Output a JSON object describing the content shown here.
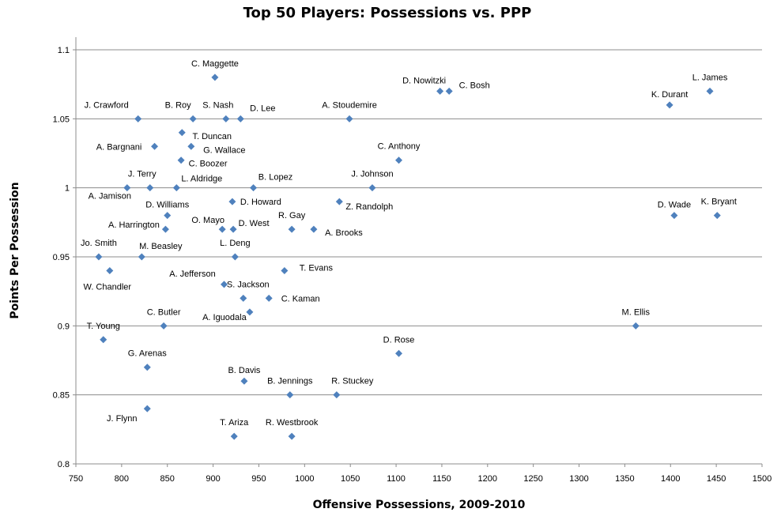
{
  "chart_data": {
    "type": "scatter",
    "title": "Top 50 Players: Possessions vs. PPP",
    "xlabel": "Offensive Possessions, 2009-2010",
    "ylabel": "Points Per Possession",
    "xlim": [
      750,
      1500
    ],
    "ylim": [
      0.8,
      1.1
    ],
    "xticks": [
      "750",
      "800",
      "850",
      "900",
      "950",
      "1000",
      "1050",
      "1100",
      "1150",
      "1200",
      "1250",
      "1300",
      "1350",
      "1400",
      "1450",
      "1500"
    ],
    "yticks": [
      "0.8",
      "0.85",
      "0.9",
      "0.95",
      "1",
      "1.05",
      "1.1"
    ],
    "marker_color": "#4f81bd",
    "points": [
      {
        "name": "C. Maggette",
        "x": 902,
        "y": 1.08
      },
      {
        "name": "D. Nowitzki",
        "x": 1148,
        "y": 1.07
      },
      {
        "name": "C. Bosh",
        "x": 1158,
        "y": 1.07
      },
      {
        "name": "L. James",
        "x": 1443,
        "y": 1.07
      },
      {
        "name": "K. Durant",
        "x": 1399,
        "y": 1.06
      },
      {
        "name": "J. Crawford",
        "x": 818,
        "y": 1.05
      },
      {
        "name": "B. Roy",
        "x": 878,
        "y": 1.05
      },
      {
        "name": "S. Nash",
        "x": 914,
        "y": 1.05
      },
      {
        "name": "D. Lee",
        "x": 930,
        "y": 1.05
      },
      {
        "name": "A. Stoudemire",
        "x": 1049,
        "y": 1.05
      },
      {
        "name": "T. Duncan",
        "x": 866,
        "y": 1.04
      },
      {
        "name": "A. Bargnani",
        "x": 836,
        "y": 1.03
      },
      {
        "name": "G. Wallace",
        "x": 876,
        "y": 1.03
      },
      {
        "name": "C. Anthony",
        "x": 1103,
        "y": 1.02
      },
      {
        "name": "C. Boozer",
        "x": 865,
        "y": 1.02
      },
      {
        "name": "J. Terry",
        "x": 831,
        "y": 1.0
      },
      {
        "name": "L. Aldridge",
        "x": 860,
        "y": 1.0
      },
      {
        "name": "B. Lopez",
        "x": 944,
        "y": 1.0
      },
      {
        "name": "J. Johnson",
        "x": 1074,
        "y": 1.0
      },
      {
        "name": "A. Jamison",
        "x": 806,
        "y": 1.0
      },
      {
        "name": "D. Howard",
        "x": 921,
        "y": 0.99
      },
      {
        "name": "Z. Randolph",
        "x": 1038,
        "y": 0.99
      },
      {
        "name": "D. Wade",
        "x": 1404,
        "y": 0.98
      },
      {
        "name": "K. Bryant",
        "x": 1451,
        "y": 0.98
      },
      {
        "name": "D. Williams",
        "x": 850,
        "y": 0.98
      },
      {
        "name": "O. Mayo",
        "x": 910,
        "y": 0.97
      },
      {
        "name": "D. West",
        "x": 922,
        "y": 0.97
      },
      {
        "name": "R. Gay",
        "x": 986,
        "y": 0.97
      },
      {
        "name": "A. Brooks",
        "x": 1010,
        "y": 0.97
      },
      {
        "name": "A. Harrington",
        "x": 848,
        "y": 0.97
      },
      {
        "name": "Jo. Smith",
        "x": 775,
        "y": 0.95
      },
      {
        "name": "M. Beasley",
        "x": 822,
        "y": 0.95
      },
      {
        "name": "L. Deng",
        "x": 924,
        "y": 0.95
      },
      {
        "name": "T. Evans",
        "x": 978,
        "y": 0.94
      },
      {
        "name": "W. Chandler",
        "x": 787,
        "y": 0.94
      },
      {
        "name": "A. Jefferson",
        "x": 912,
        "y": 0.93
      },
      {
        "name": "S. Jackson",
        "x": 933,
        "y": 0.92
      },
      {
        "name": "C. Kaman",
        "x": 961,
        "y": 0.92
      },
      {
        "name": "A. Iguodala",
        "x": 940,
        "y": 0.91
      },
      {
        "name": "M. Ellis",
        "x": 1362,
        "y": 0.9
      },
      {
        "name": "C. Butler",
        "x": 846,
        "y": 0.9
      },
      {
        "name": "T. Young",
        "x": 780,
        "y": 0.89
      },
      {
        "name": "D. Rose",
        "x": 1103,
        "y": 0.88
      },
      {
        "name": "G. Arenas",
        "x": 828,
        "y": 0.87
      },
      {
        "name": "B. Davis",
        "x": 934,
        "y": 0.86
      },
      {
        "name": "B. Jennings",
        "x": 984,
        "y": 0.85
      },
      {
        "name": "R. Stuckey",
        "x": 1035,
        "y": 0.85
      },
      {
        "name": "J. Flynn",
        "x": 828,
        "y": 0.84
      },
      {
        "name": "T. Ariza",
        "x": 923,
        "y": 0.82
      },
      {
        "name": "R. Westbrook",
        "x": 986,
        "y": 0.82
      }
    ]
  }
}
